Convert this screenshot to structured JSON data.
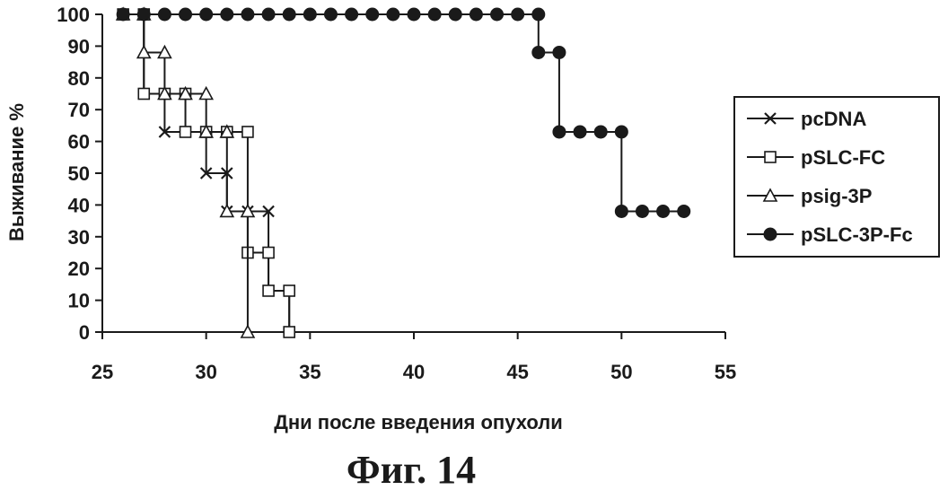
{
  "chart_data": {
    "type": "line",
    "step": true,
    "xlabel": "Дни после введения опухоли",
    "ylabel": "Выживание %",
    "caption": "Фиг. 14",
    "xlim": [
      25,
      55
    ],
    "ylim": [
      0,
      100
    ],
    "xticks": [
      25,
      30,
      35,
      40,
      45,
      50,
      55
    ],
    "yticks": [
      0,
      10,
      20,
      30,
      40,
      50,
      60,
      70,
      80,
      90,
      100
    ],
    "grid": false,
    "legend_position": "right",
    "series": [
      {
        "name": "pcDNA",
        "marker": "x",
        "color": "#1a1a1a",
        "points": [
          [
            26,
            100
          ],
          [
            27,
            100
          ],
          [
            27,
            75
          ],
          [
            28,
            75
          ],
          [
            28,
            63
          ],
          [
            29,
            63
          ],
          [
            30,
            63
          ],
          [
            30,
            50
          ],
          [
            31,
            50
          ],
          [
            31,
            38
          ],
          [
            32,
            38
          ],
          [
            33,
            38
          ],
          [
            33,
            13
          ],
          [
            34,
            13
          ],
          [
            34,
            0
          ]
        ]
      },
      {
        "name": "pSLC-FC",
        "marker": "square",
        "color": "#1a1a1a",
        "points": [
          [
            26,
            100
          ],
          [
            27,
            100
          ],
          [
            27,
            75
          ],
          [
            28,
            75
          ],
          [
            29,
            75
          ],
          [
            29,
            63
          ],
          [
            30,
            63
          ],
          [
            31,
            63
          ],
          [
            32,
            63
          ],
          [
            32,
            25
          ],
          [
            33,
            25
          ],
          [
            33,
            13
          ],
          [
            34,
            13
          ],
          [
            34,
            0
          ]
        ]
      },
      {
        "name": "psig-3P",
        "marker": "triangle",
        "color": "#1a1a1a",
        "points": [
          [
            26,
            100
          ],
          [
            27,
            100
          ],
          [
            27,
            88
          ],
          [
            28,
            88
          ],
          [
            28,
            75
          ],
          [
            29,
            75
          ],
          [
            30,
            75
          ],
          [
            30,
            63
          ],
          [
            31,
            63
          ],
          [
            31,
            38
          ],
          [
            32,
            38
          ],
          [
            32,
            0
          ]
        ]
      },
      {
        "name": "pSLC-3P-Fc",
        "marker": "circle",
        "color": "#1a1a1a",
        "points": [
          [
            26,
            100
          ],
          [
            27,
            100
          ],
          [
            28,
            100
          ],
          [
            29,
            100
          ],
          [
            30,
            100
          ],
          [
            31,
            100
          ],
          [
            32,
            100
          ],
          [
            33,
            100
          ],
          [
            34,
            100
          ],
          [
            35,
            100
          ],
          [
            36,
            100
          ],
          [
            37,
            100
          ],
          [
            38,
            100
          ],
          [
            39,
            100
          ],
          [
            40,
            100
          ],
          [
            41,
            100
          ],
          [
            42,
            100
          ],
          [
            43,
            100
          ],
          [
            44,
            100
          ],
          [
            45,
            100
          ],
          [
            46,
            100
          ],
          [
            46,
            88
          ],
          [
            47,
            88
          ],
          [
            47,
            63
          ],
          [
            48,
            63
          ],
          [
            49,
            63
          ],
          [
            50,
            63
          ],
          [
            50,
            38
          ],
          [
            51,
            38
          ],
          [
            52,
            38
          ],
          [
            53,
            38
          ]
        ]
      }
    ]
  }
}
